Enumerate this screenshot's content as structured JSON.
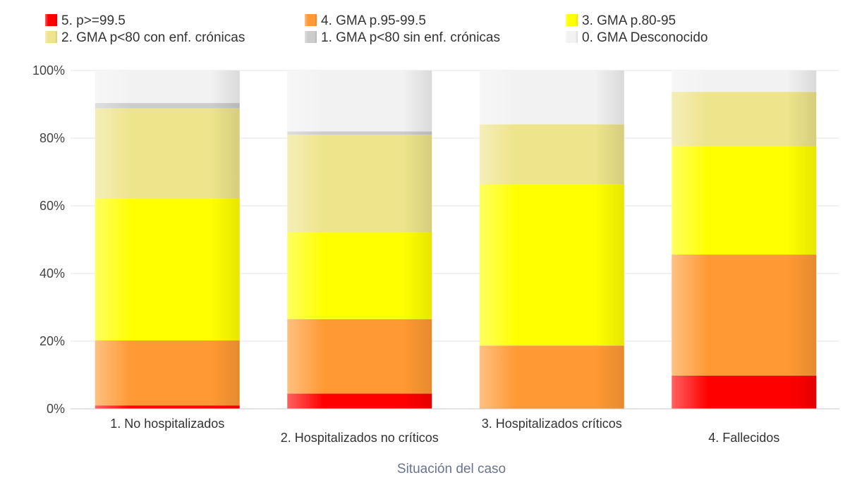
{
  "chart_data": {
    "type": "bar",
    "stacked": true,
    "xlabel": "Situación del caso",
    "ylabel": "",
    "ylim": [
      0,
      100
    ],
    "y_ticks": [
      "0%",
      "20%",
      "40%",
      "60%",
      "80%",
      "100%"
    ],
    "grid": true,
    "legend_position": "top",
    "categories": [
      "1. No hospitalizados",
      "2. Hospitalizados no críticos",
      "3. Hospitalizados críticos",
      "4. Fallecidos"
    ],
    "legend": [
      "5. p>=99.5",
      "4. GMA p.95-99.5",
      "3. GMA p.80-95",
      "2. GMA p<80 con enf. crónicas",
      "1. GMA p<80 sin enf. crónicas",
      "0. GMA Desconocido"
    ],
    "series": [
      {
        "name": "5. p>=99.5",
        "color": "#ff0000",
        "values": [
          1.0,
          4.5,
          0.0,
          9.8
        ]
      },
      {
        "name": "4. GMA p.95-99.5",
        "color": "#ff9933",
        "values": [
          19.2,
          22.0,
          18.7,
          35.8
        ]
      },
      {
        "name": "3. GMA p.80-95",
        "color": "#ffff00",
        "values": [
          42.0,
          25.7,
          47.6,
          32.0
        ]
      },
      {
        "name": "2. GMA p<80 con enf. crónicas",
        "color": "#eee48c",
        "values": [
          26.6,
          28.8,
          17.8,
          16.1
        ]
      },
      {
        "name": "1. GMA p<80 sin enf. crónicas",
        "color": "#cccccc",
        "values": [
          1.6,
          1.0,
          0.0,
          0.0
        ]
      },
      {
        "name": "0. GMA Desconocido",
        "color": "#f2f2f2",
        "values": [
          9.6,
          18.0,
          15.9,
          6.3
        ]
      }
    ]
  }
}
